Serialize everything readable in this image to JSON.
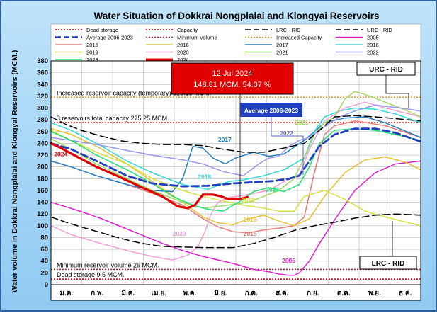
{
  "chart_data": {
    "type": "line",
    "title": "Water Situation of Dokkrai Nongplalai and Klongyai Reservoirs",
    "ylabel": "Water volume in Dokkrai Nongplalai and Klongyai Reservoirs (MCM.)",
    "ylim": [
      0,
      380
    ],
    "ytick_step": 20,
    "months": [
      "ม.ค.",
      "ก.พ.",
      "มี.ค.",
      "เม.ย.",
      "พ.ค.",
      "มิ.ย.",
      "ก.ค.",
      "ส.ค.",
      "ก.ย.",
      "ต.ค.",
      "พ.ย.",
      "ธ.ค."
    ],
    "grid": true,
    "legend_position": "top",
    "legend": [
      {
        "label": "Dead storage",
        "color": "#d40000",
        "style": "dot",
        "width": 1.5
      },
      {
        "label": "Capacity",
        "color": "#d40000",
        "style": "dot",
        "width": 1.5
      },
      {
        "label": "LRC - RID",
        "color": "#000000",
        "style": "dash",
        "width": 1.5
      },
      {
        "label": "URC - RID",
        "color": "#000000",
        "style": "dash",
        "width": 1.5
      },
      {
        "label": "Average 2006-2023",
        "color": "#1f3fbf",
        "style": "dash",
        "width": 2.5
      },
      {
        "label": "Minimum volume",
        "color": "#a0202a",
        "style": "dot",
        "width": 1.5
      },
      {
        "label": "Increased Capacity",
        "color": "#e0a030",
        "style": "dot",
        "width": 1.5
      },
      {
        "label": "2005",
        "color": "#e020d0",
        "style": "solid",
        "width": 1.5
      },
      {
        "label": "2015",
        "color": "#e87878",
        "style": "solid",
        "width": 1.5
      },
      {
        "label": "2016",
        "color": "#e8c030",
        "style": "solid",
        "width": 1.5
      },
      {
        "label": "2017",
        "color": "#2080c0",
        "style": "solid",
        "width": 1.5
      },
      {
        "label": "2018",
        "color": "#30d8d8",
        "style": "solid",
        "width": 1.5
      },
      {
        "label": "2019",
        "color": "#d8e040",
        "style": "solid",
        "width": 1.5
      },
      {
        "label": "2020",
        "color": "#f0a0d8",
        "style": "solid",
        "width": 1.5
      },
      {
        "label": "2021",
        "color": "#a0d860",
        "style": "solid",
        "width": 1.5
      },
      {
        "label": "2022",
        "color": "#9898e8",
        "style": "solid",
        "width": 1.5
      },
      {
        "label": "2023",
        "color": "#20e070",
        "style": "solid",
        "width": 1.5
      },
      {
        "label": "2024",
        "color": "#e00000",
        "style": "solid",
        "width": 3
      }
    ],
    "reference_lines": [
      {
        "name": "Increased Capacity",
        "value": 318.13,
        "color": "#e0a030",
        "label": "Increased reservoir capacity (temporary)  318.13 MCM."
      },
      {
        "name": "Capacity",
        "value": 275.25,
        "color": "#d40000",
        "label": "3 reservoirs total capacity 275.25 MCM."
      },
      {
        "name": "Minimum volume",
        "value": 26,
        "color": "#a0202a",
        "label": "Minimum reservoir volume 26 MCM."
      },
      {
        "name": "Dead storage",
        "value": 9.5,
        "color": "#d40000",
        "label": "Dead storage 9.5 MCM."
      }
    ],
    "series": [
      {
        "name": "2005",
        "color": "#e020d0",
        "width": 1.5,
        "style": "solid",
        "x": [
          0,
          15,
          30,
          50,
          70,
          90,
          110,
          130,
          150,
          180,
          200,
          215,
          225,
          235,
          240,
          245,
          255,
          265,
          280,
          300,
          320,
          340,
          365
        ],
        "y": [
          140,
          132,
          124,
          112,
          98,
          84,
          70,
          58,
          48,
          36,
          26,
          22,
          18,
          16,
          16,
          20,
          40,
          70,
          110,
          160,
          190,
          205,
          210
        ]
      },
      {
        "name": "2015",
        "color": "#e87878",
        "width": 1.5,
        "style": "solid",
        "x": [
          0,
          20,
          45,
          75,
          100,
          130,
          150,
          165,
          180,
          195,
          210,
          225,
          240,
          250,
          260,
          270,
          280,
          300,
          330,
          365
        ],
        "y": [
          210,
          200,
          185,
          170,
          155,
          135,
          112,
          98,
          90,
          88,
          93,
          96,
          100,
          115,
          190,
          255,
          270,
          278,
          270,
          250
        ]
      },
      {
        "name": "2016",
        "color": "#e8c030",
        "width": 1.5,
        "style": "solid",
        "x": [
          0,
          20,
          45,
          75,
          100,
          130,
          150,
          165,
          180,
          195,
          210,
          225,
          240,
          255,
          270,
          290,
          310,
          330,
          350,
          365
        ],
        "y": [
          265,
          255,
          235,
          205,
          175,
          140,
          115,
          105,
          102,
          112,
          118,
          108,
          100,
          112,
          150,
          190,
          212,
          217,
          208,
          195
        ]
      },
      {
        "name": "2017",
        "color": "#2080c0",
        "width": 1.5,
        "style": "solid",
        "x": [
          0,
          20,
          45,
          75,
          100,
          120,
          130,
          140,
          150,
          160,
          172,
          182,
          200,
          215,
          230,
          250,
          270,
          290,
          310,
          330,
          365
        ],
        "y": [
          210,
          200,
          185,
          170,
          160,
          158,
          180,
          235,
          232,
          215,
          205,
          215,
          225,
          218,
          222,
          245,
          275,
          283,
          285,
          275,
          250
        ]
      },
      {
        "name": "2018",
        "color": "#30d8d8",
        "width": 1.5,
        "style": "solid",
        "x": [
          0,
          20,
          45,
          75,
          100,
          130,
          155,
          175,
          190,
          210,
          230,
          250,
          260,
          270,
          285,
          300,
          320,
          340,
          365
        ],
        "y": [
          275,
          262,
          240,
          210,
          190,
          170,
          162,
          175,
          178,
          185,
          195,
          215,
          260,
          285,
          295,
          300,
          298,
          290,
          275
        ]
      },
      {
        "name": "2019",
        "color": "#d8e040",
        "width": 1.5,
        "style": "solid",
        "x": [
          0,
          20,
          45,
          75,
          100,
          130,
          150,
          170,
          190,
          210,
          225,
          240,
          250,
          270,
          290,
          310,
          330,
          365
        ],
        "y": [
          262,
          245,
          225,
          205,
          180,
          160,
          150,
          142,
          135,
          130,
          125,
          125,
          150,
          160,
          145,
          125,
          115,
          100
        ]
      },
      {
        "name": "2020",
        "color": "#f0a0d8",
        "width": 1.5,
        "style": "solid",
        "x": [
          0,
          20,
          45,
          75,
          100,
          120,
          135,
          145,
          152,
          158,
          165,
          175,
          185,
          200,
          215,
          230,
          245,
          255,
          270,
          290,
          310,
          330,
          365
        ],
        "y": [
          100,
          85,
          72,
          58,
          48,
          42,
          50,
          65,
          90,
          120,
          140,
          148,
          150,
          155,
          160,
          175,
          185,
          230,
          278,
          300,
          310,
          300,
          285
        ]
      },
      {
        "name": "2021",
        "color": "#a0d860",
        "width": 1.5,
        "style": "solid",
        "x": [
          0,
          20,
          45,
          75,
          100,
          130,
          150,
          175,
          195,
          210,
          225,
          240,
          250,
          260,
          270,
          280,
          290,
          300,
          315,
          330,
          345,
          365
        ],
        "y": [
          248,
          230,
          205,
          180,
          160,
          140,
          130,
          135,
          140,
          150,
          160,
          180,
          215,
          255,
          275,
          285,
          315,
          328,
          320,
          310,
          300,
          285
        ]
      },
      {
        "name": "2022",
        "color": "#9898e8",
        "width": 1.5,
        "style": "solid",
        "x": [
          0,
          20,
          45,
          75,
          100,
          130,
          150,
          170,
          190,
          205,
          215,
          225,
          235,
          245,
          255,
          270,
          285,
          300,
          320,
          345,
          365
        ],
        "y": [
          250,
          245,
          238,
          228,
          220,
          212,
          205,
          192,
          185,
          205,
          215,
          218,
          235,
          245,
          250,
          268,
          285,
          295,
          305,
          300,
          295
        ]
      },
      {
        "name": "2023",
        "color": "#20e070",
        "width": 1.5,
        "style": "solid",
        "x": [
          0,
          20,
          45,
          75,
          100,
          120,
          140,
          155,
          170,
          185,
          200,
          215,
          230,
          245,
          255,
          265,
          280,
          300,
          320,
          340,
          365
        ],
        "y": [
          260,
          245,
          220,
          195,
          172,
          150,
          135,
          128,
          125,
          140,
          158,
          165,
          158,
          170,
          200,
          240,
          262,
          265,
          262,
          255,
          245
        ]
      },
      {
        "name": "Average 2006-2023",
        "color": "#1f3fbf",
        "width": 2.8,
        "style": "dash",
        "x": [
          0,
          20,
          45,
          75,
          100,
          130,
          155,
          180,
          200,
          220,
          235,
          245,
          255,
          265,
          280,
          300,
          320,
          340,
          365
        ],
        "y": [
          240,
          230,
          210,
          185,
          172,
          167,
          168,
          172,
          174,
          176,
          180,
          185,
          210,
          235,
          255,
          265,
          265,
          258,
          243
        ]
      },
      {
        "name": "LRC - RID",
        "color": "#000000",
        "width": 1.5,
        "style": "dash",
        "x": [
          0,
          15,
          30,
          50,
          70,
          90,
          110,
          130,
          150,
          180,
          200,
          220,
          240,
          260,
          280,
          300,
          320,
          340,
          365
        ],
        "y": [
          115,
          106,
          98,
          88,
          78,
          70,
          65,
          64,
          63,
          63,
          70,
          80,
          92,
          100,
          106,
          113,
          118,
          120,
          118
        ]
      },
      {
        "name": "URC - RID",
        "color": "#000000",
        "width": 1.5,
        "style": "dash",
        "x": [
          0,
          15,
          30,
          50,
          70,
          90,
          110,
          130,
          150,
          170,
          190,
          210,
          230,
          250,
          265,
          280,
          300,
          320,
          340,
          365
        ],
        "y": [
          285,
          272,
          262,
          252,
          244,
          240,
          238,
          238,
          236,
          230,
          225,
          225,
          232,
          240,
          262,
          285,
          287,
          285,
          282,
          278
        ]
      },
      {
        "name": "2024",
        "color": "#e00000",
        "width": 3.2,
        "style": "solid",
        "x": [
          0,
          10,
          25,
          45,
          65,
          90,
          110,
          125,
          135,
          142,
          150,
          160,
          168,
          175,
          185,
          194
        ],
        "y": [
          240,
          232,
          218,
          200,
          185,
          165,
          150,
          133,
          130,
          135,
          153,
          153,
          150,
          145,
          145,
          148.81
        ]
      }
    ],
    "annotations": [
      {
        "text": "2024",
        "x": 3,
        "y": 218,
        "color": "#e00000"
      },
      {
        "text": "2017",
        "x": 165,
        "y": 243,
        "color": "#2080c0"
      },
      {
        "text": "2018",
        "x": 145,
        "y": 180,
        "color": "#30d8d8"
      },
      {
        "text": "2019",
        "x": 188,
        "y": 140,
        "color": "#d8e040"
      },
      {
        "text": "2016",
        "x": 190,
        "y": 107,
        "color": "#e8c030"
      },
      {
        "text": "2015",
        "x": 190,
        "y": 83,
        "color": "#e87878"
      },
      {
        "text": "2020",
        "x": 120,
        "y": 83,
        "color": "#f0a0d8"
      },
      {
        "text": "2005",
        "x": 228,
        "y": 37,
        "color": "#e020d0"
      },
      {
        "text": "2023",
        "x": 212,
        "y": 158,
        "color": "#20e070"
      },
      {
        "text": "2022",
        "x": 226,
        "y": 254,
        "color": "#7070c8"
      },
      {
        "text": "2021",
        "x": 241,
        "y": 272,
        "color": "#a0d860"
      }
    ],
    "callouts": {
      "current": {
        "date": "12 Jul 2024",
        "detail": "148.81 MCM. 54.07 %"
      },
      "average": "Average 2006-2023",
      "urc": "URC - RID",
      "lrc": "LRC - RID"
    }
  }
}
